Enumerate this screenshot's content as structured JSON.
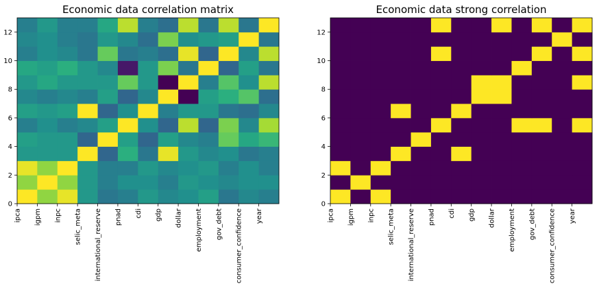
{
  "chart_data": [
    {
      "type": "heatmap",
      "title": "Economic data correlation matrix",
      "xlabel": "",
      "ylabel": "",
      "xlim": [
        0,
        13
      ],
      "ylim": [
        0,
        13
      ],
      "colormap": "viridis",
      "clim": [
        -0.5,
        1.0
      ],
      "categories": [
        "ipca",
        "igpm",
        "inpc",
        "selic_meta",
        "international_reserve",
        "pnad",
        "cdi",
        "gdp",
        "dollar",
        "employment",
        "gov_debt",
        "consumer_confidence",
        "year"
      ],
      "yticks": [
        "0",
        "2",
        "4",
        "6",
        "8",
        "10",
        "12"
      ],
      "matrix": [
        [
          1.0,
          0.75,
          0.95,
          0.3,
          0.1,
          0.15,
          0.3,
          0.2,
          0.25,
          0.35,
          0.1,
          0.2,
          0.15
        ],
        [
          0.75,
          1.0,
          0.75,
          0.3,
          0.15,
          0.25,
          0.25,
          0.15,
          0.3,
          0.25,
          0.2,
          0.25,
          0.25
        ],
        [
          0.95,
          0.75,
          1.0,
          0.3,
          0.15,
          0.15,
          0.3,
          0.2,
          0.25,
          0.3,
          0.15,
          0.25,
          0.15
        ],
        [
          0.3,
          0.3,
          0.3,
          1.0,
          0.0,
          0.45,
          0.1,
          0.95,
          0.3,
          0.2,
          0.25,
          0.1,
          0.15
        ],
        [
          0.35,
          0.3,
          0.3,
          0.0,
          1.0,
          0.35,
          0.0,
          0.35,
          0.2,
          0.15,
          0.65,
          0.4,
          0.5
        ],
        [
          0.15,
          0.25,
          0.15,
          0.2,
          0.35,
          1.0,
          0.25,
          0.0,
          0.85,
          0.0,
          0.7,
          0.2,
          0.8
        ],
        [
          0.35,
          0.3,
          0.35,
          1.0,
          0.0,
          0.25,
          1.0,
          0.15,
          0.3,
          0.3,
          0.1,
          0.05,
          0.2
        ],
        [
          0.2,
          0.15,
          0.2,
          0.15,
          0.35,
          0.0,
          0.2,
          1.0,
          -0.5,
          0.35,
          0.45,
          0.6,
          0.05
        ],
        [
          0.3,
          0.4,
          0.3,
          0.3,
          0.3,
          0.65,
          0.3,
          -0.5,
          1.0,
          0.15,
          0.6,
          0.25,
          0.85
        ],
        [
          0.4,
          0.35,
          0.45,
          0.3,
          0.2,
          -0.4,
          0.3,
          0.7,
          0.1,
          1.0,
          0.0,
          0.35,
          0.1
        ],
        [
          0.15,
          0.25,
          0.2,
          0.1,
          0.65,
          0.1,
          0.15,
          0.05,
          0.95,
          0.0,
          1.0,
          0.2,
          0.85
        ],
        [
          0.2,
          0.25,
          0.15,
          0.1,
          0.3,
          0.2,
          0.05,
          0.7,
          0.25,
          0.3,
          0.35,
          1.0,
          0.1
        ],
        [
          0.15,
          0.3,
          0.15,
          0.15,
          0.4,
          0.85,
          0.15,
          0.05,
          0.85,
          0.1,
          0.85,
          0.1,
          1.0
        ]
      ]
    },
    {
      "type": "heatmap",
      "title": "Economic data strong correlation",
      "xlabel": "",
      "ylabel": "",
      "xlim": [
        0,
        13
      ],
      "ylim": [
        0,
        13
      ],
      "colormap": "binary purple/yellow",
      "categories": [
        "ipca",
        "igpm",
        "inpc",
        "selic_meta",
        "international_reserve",
        "pnad",
        "cdi",
        "gdp",
        "dollar",
        "employment",
        "gov_debt",
        "consumer_confidence",
        "year"
      ],
      "yticks": [
        "0",
        "2",
        "4",
        "6",
        "8",
        "10",
        "12"
      ],
      "matrix": [
        [
          1,
          0,
          1,
          0,
          0,
          0,
          0,
          0,
          0,
          0,
          0,
          0,
          0
        ],
        [
          0,
          1,
          0,
          0,
          0,
          0,
          0,
          0,
          0,
          0,
          0,
          0,
          0
        ],
        [
          1,
          0,
          1,
          0,
          0,
          0,
          0,
          0,
          0,
          0,
          0,
          0,
          0
        ],
        [
          0,
          0,
          0,
          1,
          0,
          0,
          1,
          0,
          0,
          0,
          0,
          0,
          0
        ],
        [
          0,
          0,
          0,
          0,
          1,
          0,
          0,
          0,
          0,
          0,
          0,
          0,
          0
        ],
        [
          0,
          0,
          0,
          0,
          0,
          1,
          0,
          0,
          0,
          1,
          1,
          0,
          1
        ],
        [
          0,
          0,
          0,
          1,
          0,
          0,
          1,
          0,
          0,
          0,
          0,
          0,
          0
        ],
        [
          0,
          0,
          0,
          0,
          0,
          0,
          0,
          1,
          1,
          0,
          0,
          0,
          0
        ],
        [
          0,
          0,
          0,
          0,
          0,
          0,
          0,
          1,
          1,
          0,
          0,
          0,
          1
        ],
        [
          0,
          0,
          0,
          0,
          0,
          0,
          0,
          0,
          0,
          1,
          0,
          0,
          0
        ],
        [
          0,
          0,
          0,
          0,
          0,
          1,
          0,
          0,
          0,
          0,
          1,
          0,
          1
        ],
        [
          0,
          0,
          0,
          0,
          0,
          0,
          0,
          0,
          0,
          0,
          0,
          1,
          0
        ],
        [
          0,
          0,
          0,
          0,
          0,
          1,
          0,
          0,
          1,
          0,
          1,
          0,
          1
        ]
      ]
    }
  ]
}
